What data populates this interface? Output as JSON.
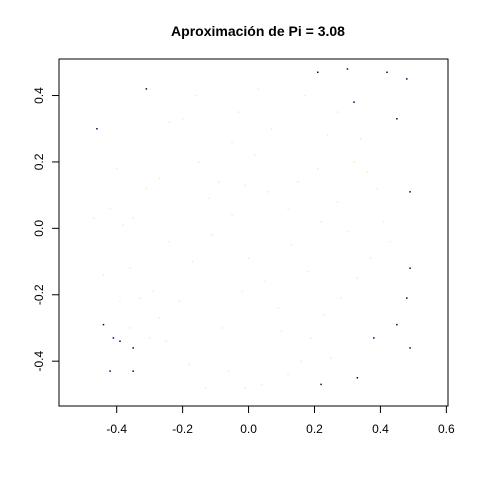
{
  "chart_data": {
    "type": "scatter",
    "title": "Aproximación de Pi = 3.08",
    "xlabel": "",
    "ylabel": "",
    "xlim": [
      -0.575,
      0.605
    ],
    "ylim": [
      -0.535,
      0.51
    ],
    "grid": false,
    "legend": "none",
    "x_ticks": [
      {
        "value": -0.4,
        "label": "-0.4"
      },
      {
        "value": -0.2,
        "label": "-0.2"
      },
      {
        "value": 0.0,
        "label": "0.0"
      },
      {
        "value": 0.2,
        "label": "0.2"
      },
      {
        "value": 0.4,
        "label": "0.4"
      },
      {
        "value": 0.6,
        "label": "0.6"
      }
    ],
    "y_ticks": [
      {
        "value": -0.4,
        "label": "-0.4"
      },
      {
        "value": -0.2,
        "label": "-0.2"
      },
      {
        "value": 0.0,
        "label": "0.0"
      },
      {
        "value": 0.2,
        "label": "0.2"
      },
      {
        "value": 0.4,
        "label": "0.4"
      }
    ],
    "series": [
      {
        "color": "#f2f2b0",
        "points": [
          [
            -0.47,
            0.03
          ],
          [
            -0.42,
            0.06
          ],
          [
            -0.38,
            0.01
          ],
          [
            -0.35,
            0.03
          ],
          [
            -0.44,
            -0.14
          ],
          [
            -0.36,
            -0.12
          ],
          [
            -0.33,
            -0.21
          ],
          [
            -0.29,
            -0.19
          ],
          [
            -0.36,
            -0.3
          ],
          [
            -0.3,
            -0.33
          ],
          [
            -0.25,
            -0.34
          ],
          [
            -0.27,
            0.15
          ],
          [
            -0.24,
            0.32
          ],
          [
            -0.2,
            0.33
          ],
          [
            -0.15,
            0.2
          ],
          [
            -0.09,
            0.14
          ],
          [
            -0.05,
            0.26
          ],
          [
            -0.03,
            0.35
          ],
          [
            0.02,
            0.22
          ],
          [
            0.06,
            0.11
          ],
          [
            0.12,
            0.06
          ],
          [
            0.15,
            0.14
          ],
          [
            0.21,
            0.18
          ],
          [
            0.24,
            0.28
          ],
          [
            0.27,
            0.35
          ],
          [
            0.32,
            0.2
          ],
          [
            0.36,
            0.17
          ],
          [
            0.39,
            0.12
          ],
          [
            0.41,
            0.02
          ],
          [
            0.43,
            -0.04
          ],
          [
            0.37,
            -0.09
          ],
          [
            0.33,
            -0.15
          ],
          [
            0.28,
            -0.21
          ],
          [
            0.23,
            -0.26
          ],
          [
            0.19,
            -0.33
          ],
          [
            0.16,
            -0.4
          ],
          [
            0.12,
            -0.44
          ],
          [
            0.04,
            -0.47
          ],
          [
            -0.01,
            -0.48
          ],
          [
            -0.06,
            -0.43
          ],
          [
            -0.13,
            -0.48
          ],
          [
            -0.18,
            -0.41
          ],
          [
            -0.21,
            -0.22
          ],
          [
            -0.17,
            -0.1
          ],
          [
            -0.11,
            -0.02
          ],
          [
            -0.05,
            0.04
          ],
          [
            0.0,
            -0.09
          ],
          [
            0.05,
            -0.16
          ],
          [
            0.09,
            -0.24
          ],
          [
            -0.02,
            -0.19
          ],
          [
            -0.08,
            -0.3
          ],
          [
            0.13,
            -0.05
          ],
          [
            0.18,
            -0.13
          ],
          [
            0.22,
            0.02
          ],
          [
            0.27,
            0.08
          ],
          [
            -0.24,
            -0.04
          ],
          [
            -0.31,
            0.12
          ],
          [
            -0.39,
            -0.22
          ],
          [
            0.3,
            -0.01
          ],
          [
            0.07,
            0.3
          ],
          [
            -0.12,
            0.09
          ],
          [
            -0.01,
            0.13
          ],
          [
            0.1,
            -0.31
          ],
          [
            0.25,
            -0.39
          ],
          [
            -0.27,
            -0.27
          ],
          [
            0.34,
            0.27
          ],
          [
            0.17,
            0.4
          ],
          [
            0.03,
            0.42
          ],
          [
            -0.16,
            0.4
          ],
          [
            -0.4,
            0.18
          ]
        ]
      },
      {
        "color": "#000066",
        "points": [
          [
            -0.31,
            0.42
          ],
          [
            -0.46,
            0.3
          ],
          [
            0.21,
            0.47
          ],
          [
            0.3,
            0.48
          ],
          [
            0.42,
            0.47
          ],
          [
            0.48,
            0.45
          ],
          [
            0.32,
            0.38
          ],
          [
            0.45,
            0.33
          ],
          [
            0.49,
            0.11
          ],
          [
            0.49,
            -0.12
          ],
          [
            0.48,
            -0.21
          ],
          [
            0.45,
            -0.29
          ],
          [
            0.38,
            -0.33
          ],
          [
            0.49,
            -0.36
          ],
          [
            0.33,
            -0.45
          ],
          [
            0.22,
            -0.47
          ],
          [
            -0.44,
            -0.29
          ],
          [
            -0.39,
            -0.34
          ],
          [
            -0.35,
            -0.36
          ],
          [
            -0.42,
            -0.43
          ],
          [
            -0.35,
            -0.43
          ],
          [
            -0.41,
            -0.33
          ]
        ]
      }
    ]
  }
}
